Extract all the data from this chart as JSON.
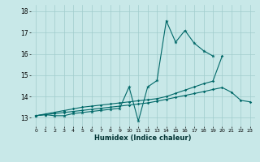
{
  "xlabel": "Humidex (Indice chaleur)",
  "x_values": [
    0,
    1,
    2,
    3,
    4,
    5,
    6,
    7,
    8,
    9,
    10,
    11,
    12,
    13,
    14,
    15,
    16,
    17,
    18,
    19,
    20,
    21,
    22,
    23
  ],
  "ylim": [
    12.6,
    18.3
  ],
  "yticks": [
    13,
    14,
    15,
    16,
    17,
    18
  ],
  "bg_color": "#c8e8e8",
  "grid_color": "#a0cccc",
  "line_color": "#006868",
  "line1_y": [
    13.1,
    13.15,
    13.1,
    13.1,
    13.2,
    13.25,
    13.3,
    13.35,
    13.4,
    13.45,
    14.45,
    12.85,
    14.45,
    14.75,
    17.55,
    16.55,
    17.1,
    16.5,
    16.15,
    15.9,
    null,
    null,
    null,
    null
  ],
  "line2_y": [
    13.1,
    13.15,
    13.2,
    13.25,
    13.3,
    13.35,
    13.4,
    13.45,
    13.5,
    13.55,
    13.6,
    13.65,
    13.7,
    13.78,
    13.87,
    13.96,
    14.05,
    14.14,
    14.23,
    14.33,
    14.42,
    14.2,
    13.82,
    13.75
  ],
  "line3_y": [
    13.1,
    13.18,
    13.26,
    13.34,
    13.42,
    13.5,
    13.55,
    13.6,
    13.65,
    13.7,
    13.75,
    13.8,
    13.85,
    13.9,
    14.0,
    14.15,
    14.3,
    14.45,
    14.6,
    14.72,
    15.9,
    null,
    null,
    null
  ]
}
